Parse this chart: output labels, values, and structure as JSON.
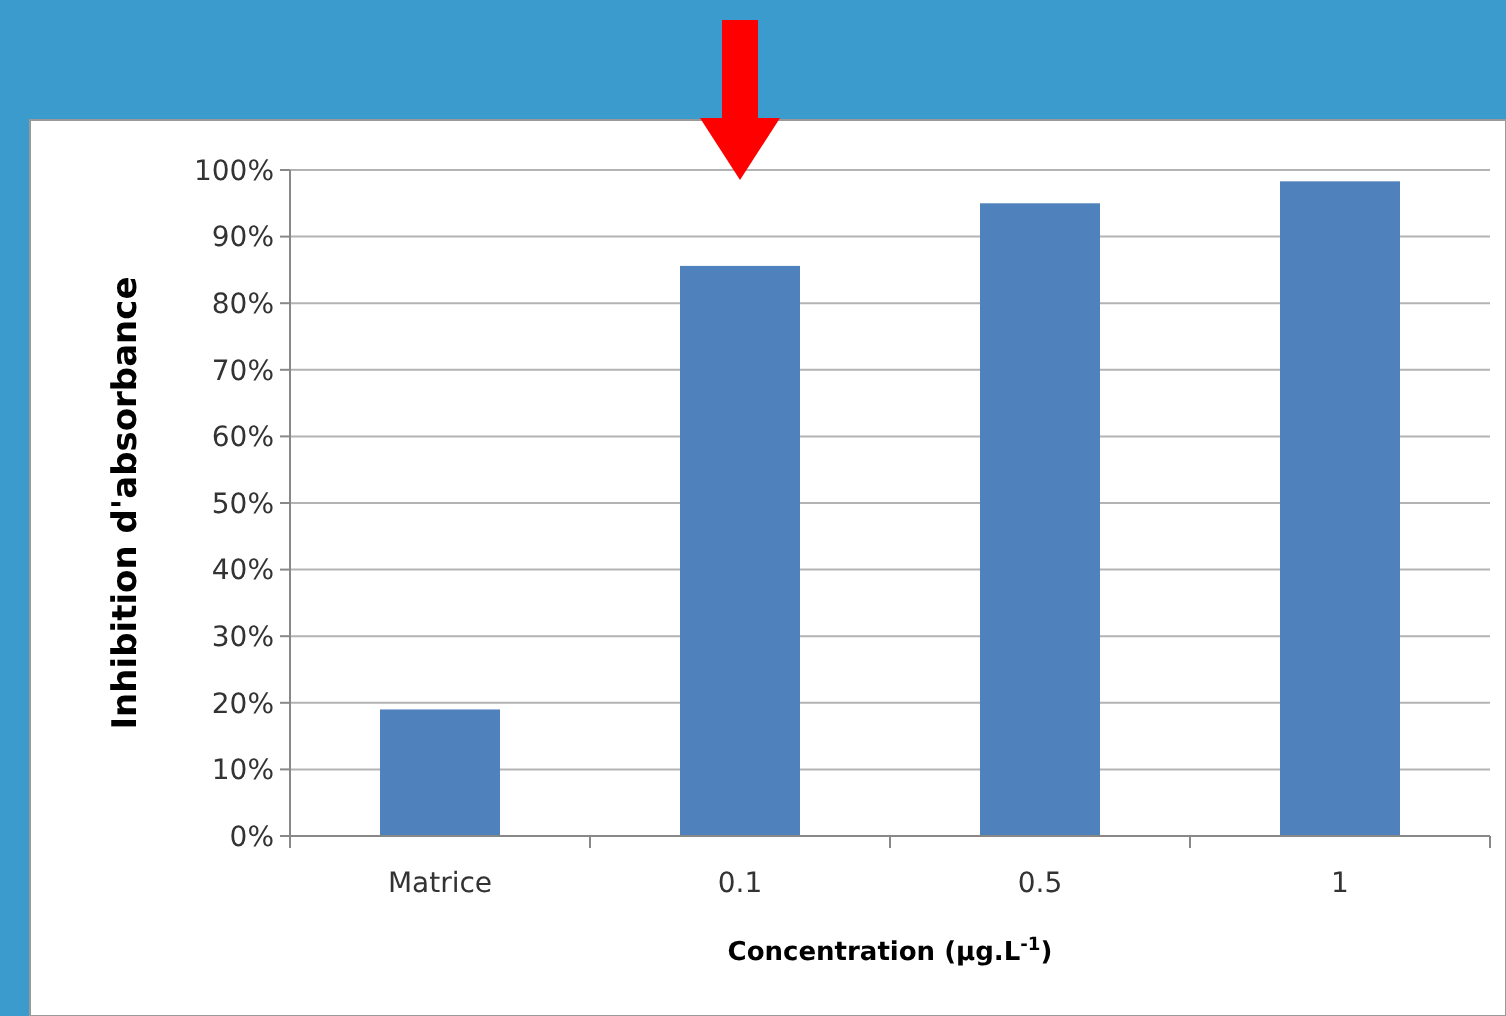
{
  "chart_data": {
    "type": "bar",
    "xlabel": "Concentration (µg.L$^{-1}$)",
    "ylabel": "Inhibition d'absorbance",
    "categories": [
      "Matrice",
      "0.1",
      "0.5",
      "1"
    ],
    "values": [
      19,
      85.6,
      95,
      98.3
    ],
    "color": "#4f81bd",
    "ylim": [
      0,
      100
    ],
    "yticks": [
      {
        "value": 0,
        "label": "0%"
      },
      {
        "value": 10,
        "label": "10%"
      },
      {
        "value": 20,
        "label": "20%"
      },
      {
        "value": 30,
        "label": "30%"
      },
      {
        "value": 40,
        "label": "40%"
      },
      {
        "value": 50,
        "label": "50%"
      },
      {
        "value": 60,
        "label": "60%"
      },
      {
        "value": 70,
        "label": "70%"
      },
      {
        "value": 80,
        "label": "80%"
      },
      {
        "value": 90,
        "label": "90%"
      },
      {
        "value": 100,
        "label": "100%"
      }
    ],
    "grid": "y"
  }
}
